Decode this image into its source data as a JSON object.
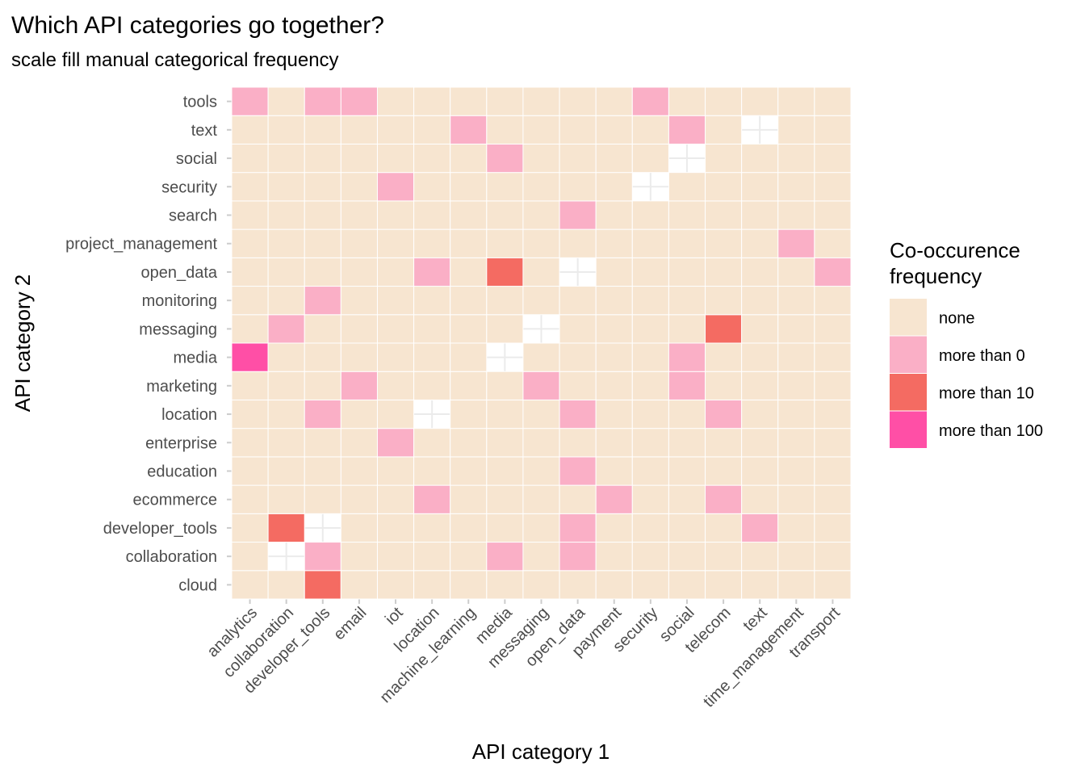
{
  "chart_data": {
    "type": "heatmap",
    "title": "Which API categories go together?",
    "subtitle": "scale fill manual categorical frequency",
    "xlabel": "API category 1",
    "ylabel": "API category 2",
    "x_categories": [
      "analytics",
      "collaboration",
      "developer_tools",
      "email",
      "iot",
      "location",
      "machine_learning",
      "media",
      "messaging",
      "open_data",
      "payment",
      "security",
      "social",
      "telecom",
      "text",
      "time_management",
      "transport"
    ],
    "y_categories": [
      "cloud",
      "collaboration",
      "developer_tools",
      "ecommerce",
      "education",
      "enterprise",
      "location",
      "marketing",
      "media",
      "messaging",
      "monitoring",
      "open_data",
      "project_management",
      "search",
      "security",
      "social",
      "text",
      "tools"
    ],
    "legend": {
      "title_lines": [
        "Co-occurence",
        "frequency"
      ],
      "position": "right",
      "levels": [
        {
          "label": "none",
          "color": "#F7E5D0"
        },
        {
          "label": "more than 0",
          "color": "#FAAFC6"
        },
        {
          "label": "more than 10",
          "color": "#F46B62"
        },
        {
          "label": "more than 100",
          "color": "#FF4FA6"
        }
      ]
    },
    "default_level": "none",
    "self_pair_level": "missing",
    "cells": [
      {
        "x": "analytics",
        "y": "tools",
        "level": "more than 0"
      },
      {
        "x": "developer_tools",
        "y": "tools",
        "level": "more than 0"
      },
      {
        "x": "email",
        "y": "tools",
        "level": "more than 0"
      },
      {
        "x": "security",
        "y": "tools",
        "level": "more than 0"
      },
      {
        "x": "machine_learning",
        "y": "text",
        "level": "more than 0"
      },
      {
        "x": "social",
        "y": "text",
        "level": "more than 0"
      },
      {
        "x": "media",
        "y": "social",
        "level": "more than 0"
      },
      {
        "x": "iot",
        "y": "security",
        "level": "more than 0"
      },
      {
        "x": "open_data",
        "y": "search",
        "level": "more than 0"
      },
      {
        "x": "time_management",
        "y": "project_management",
        "level": "more than 0"
      },
      {
        "x": "location",
        "y": "open_data",
        "level": "more than 0"
      },
      {
        "x": "media",
        "y": "open_data",
        "level": "more than 10"
      },
      {
        "x": "transport",
        "y": "open_data",
        "level": "more than 0"
      },
      {
        "x": "developer_tools",
        "y": "monitoring",
        "level": "more than 0"
      },
      {
        "x": "collaboration",
        "y": "messaging",
        "level": "more than 0"
      },
      {
        "x": "telecom",
        "y": "messaging",
        "level": "more than 10"
      },
      {
        "x": "analytics",
        "y": "media",
        "level": "more than 100"
      },
      {
        "x": "social",
        "y": "media",
        "level": "more than 0"
      },
      {
        "x": "email",
        "y": "marketing",
        "level": "more than 0"
      },
      {
        "x": "messaging",
        "y": "marketing",
        "level": "more than 0"
      },
      {
        "x": "social",
        "y": "marketing",
        "level": "more than 0"
      },
      {
        "x": "developer_tools",
        "y": "location",
        "level": "more than 0"
      },
      {
        "x": "open_data",
        "y": "location",
        "level": "more than 0"
      },
      {
        "x": "telecom",
        "y": "location",
        "level": "more than 0"
      },
      {
        "x": "iot",
        "y": "enterprise",
        "level": "more than 0"
      },
      {
        "x": "open_data",
        "y": "education",
        "level": "more than 0"
      },
      {
        "x": "location",
        "y": "ecommerce",
        "level": "more than 0"
      },
      {
        "x": "payment",
        "y": "ecommerce",
        "level": "more than 0"
      },
      {
        "x": "telecom",
        "y": "ecommerce",
        "level": "more than 0"
      },
      {
        "x": "collaboration",
        "y": "developer_tools",
        "level": "more than 10"
      },
      {
        "x": "open_data",
        "y": "developer_tools",
        "level": "more than 0"
      },
      {
        "x": "text",
        "y": "developer_tools",
        "level": "more than 0"
      },
      {
        "x": "developer_tools",
        "y": "collaboration",
        "level": "more than 0"
      },
      {
        "x": "media",
        "y": "collaboration",
        "level": "more than 0"
      },
      {
        "x": "open_data",
        "y": "collaboration",
        "level": "more than 0"
      },
      {
        "x": "developer_tools",
        "y": "cloud",
        "level": "more than 10"
      }
    ]
  }
}
